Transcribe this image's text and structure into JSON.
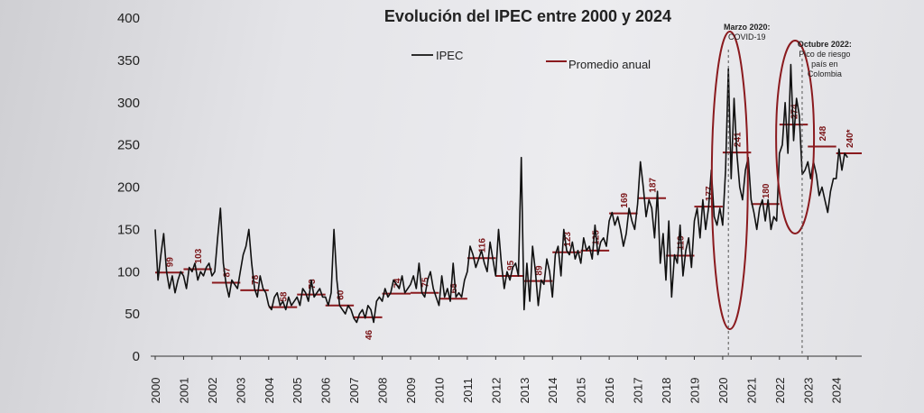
{
  "chart_data": {
    "type": "line",
    "title": "Evolución del IPEC entre 2000 y 2024",
    "xlabel": "",
    "ylabel": "",
    "ylim": [
      0,
      400
    ],
    "yticks": [
      "0",
      "50",
      "100",
      "150",
      "200",
      "250",
      "300",
      "350",
      "400"
    ],
    "xlim": [
      2000,
      2024.9
    ],
    "xticks": [
      "2000",
      "2001",
      "2002",
      "2003",
      "2004",
      "2005",
      "2006",
      "2007",
      "2008",
      "2009",
      "2010",
      "2011",
      "2012",
      "2013",
      "2014",
      "2015",
      "2016",
      "2017",
      "2018",
      "2019",
      "2020",
      "2021",
      "2022",
      "2023",
      "2024"
    ],
    "grid": false,
    "legend": {
      "placement": "top-center",
      "entries": [
        "IPEC",
        "Promedio anual"
      ]
    },
    "series": [
      {
        "name": "IPEC",
        "color": "#111111",
        "x": [
          2000.0,
          2000.1,
          2000.2,
          2000.3,
          2000.4,
          2000.5,
          2000.6,
          2000.7,
          2000.8,
          2000.9,
          2001.0,
          2001.1,
          2001.2,
          2001.3,
          2001.4,
          2001.5,
          2001.6,
          2001.7,
          2001.8,
          2001.9,
          2002.0,
          2002.1,
          2002.2,
          2002.3,
          2002.4,
          2002.5,
          2002.6,
          2002.7,
          2002.8,
          2002.9,
          2003.0,
          2003.1,
          2003.2,
          2003.3,
          2003.4,
          2003.5,
          2003.6,
          2003.7,
          2003.8,
          2003.9,
          2004.0,
          2004.1,
          2004.2,
          2004.3,
          2004.4,
          2004.5,
          2004.6,
          2004.7,
          2004.8,
          2004.9,
          2005.0,
          2005.1,
          2005.2,
          2005.3,
          2005.4,
          2005.5,
          2005.6,
          2005.7,
          2005.8,
          2005.9,
          2006.0,
          2006.1,
          2006.2,
          2006.3,
          2006.4,
          2006.5,
          2006.6,
          2006.7,
          2006.8,
          2006.9,
          2007.0,
          2007.1,
          2007.2,
          2007.3,
          2007.4,
          2007.5,
          2007.6,
          2007.7,
          2007.8,
          2007.9,
          2008.0,
          2008.1,
          2008.2,
          2008.3,
          2008.4,
          2008.5,
          2008.6,
          2008.7,
          2008.8,
          2008.9,
          2009.0,
          2009.1,
          2009.2,
          2009.3,
          2009.4,
          2009.5,
          2009.6,
          2009.7,
          2009.8,
          2009.9,
          2010.0,
          2010.1,
          2010.2,
          2010.3,
          2010.4,
          2010.5,
          2010.6,
          2010.7,
          2010.8,
          2010.9,
          2011.0,
          2011.1,
          2011.2,
          2011.3,
          2011.4,
          2011.5,
          2011.6,
          2011.7,
          2011.8,
          2011.9,
          2012.0,
          2012.1,
          2012.2,
          2012.3,
          2012.4,
          2012.5,
          2012.6,
          2012.7,
          2012.8,
          2012.9,
          2013.0,
          2013.1,
          2013.2,
          2013.3,
          2013.4,
          2013.5,
          2013.6,
          2013.7,
          2013.8,
          2013.9,
          2014.0,
          2014.1,
          2014.2,
          2014.3,
          2014.4,
          2014.5,
          2014.6,
          2014.7,
          2014.8,
          2014.9,
          2015.0,
          2015.1,
          2015.2,
          2015.3,
          2015.4,
          2015.5,
          2015.6,
          2015.7,
          2015.8,
          2015.9,
          2016.0,
          2016.1,
          2016.2,
          2016.3,
          2016.4,
          2016.5,
          2016.6,
          2016.7,
          2016.8,
          2016.9,
          2017.0,
          2017.1,
          2017.2,
          2017.3,
          2017.4,
          2017.5,
          2017.6,
          2017.7,
          2017.8,
          2017.9,
          2018.0,
          2018.1,
          2018.2,
          2018.3,
          2018.4,
          2018.5,
          2018.6,
          2018.7,
          2018.8,
          2018.9,
          2019.0,
          2019.1,
          2019.2,
          2019.3,
          2019.4,
          2019.5,
          2019.6,
          2019.7,
          2019.8,
          2019.9,
          2020.0,
          2020.1,
          2020.2,
          2020.3,
          2020.4,
          2020.5,
          2020.6,
          2020.7,
          2020.8,
          2020.9,
          2021.0,
          2021.1,
          2021.2,
          2021.3,
          2021.4,
          2021.5,
          2021.6,
          2021.7,
          2021.8,
          2021.9,
          2022.0,
          2022.1,
          2022.2,
          2022.3,
          2022.4,
          2022.5,
          2022.6,
          2022.7,
          2022.8,
          2022.9,
          2023.0,
          2023.1,
          2023.2,
          2023.3,
          2023.4,
          2023.5,
          2023.6,
          2023.7,
          2023.8,
          2023.9,
          2024.0,
          2024.1,
          2024.2,
          2024.3,
          2024.4
        ],
        "y": [
          150,
          90,
          120,
          145,
          100,
          80,
          95,
          75,
          90,
          100,
          95,
          80,
          105,
          100,
          110,
          90,
          100,
          95,
          105,
          110,
          95,
          100,
          140,
          175,
          110,
          85,
          70,
          90,
          85,
          80,
          100,
          120,
          130,
          150,
          110,
          80,
          70,
          95,
          80,
          75,
          60,
          55,
          70,
          75,
          60,
          65,
          55,
          70,
          60,
          65,
          70,
          60,
          80,
          75,
          65,
          90,
          70,
          75,
          80,
          70,
          70,
          60,
          75,
          150,
          90,
          60,
          55,
          50,
          60,
          55,
          45,
          40,
          50,
          55,
          45,
          60,
          55,
          40,
          65,
          70,
          65,
          80,
          70,
          75,
          90,
          85,
          80,
          95,
          75,
          80,
          85,
          95,
          80,
          110,
          75,
          70,
          90,
          100,
          80,
          70,
          60,
          95,
          70,
          80,
          65,
          110,
          70,
          75,
          70,
          90,
          100,
          130,
          120,
          105,
          115,
          125,
          110,
          100,
          135,
          115,
          95,
          150,
          110,
          80,
          100,
          90,
          105,
          110,
          95,
          235,
          55,
          110,
          65,
          130,
          100,
          60,
          90,
          85,
          115,
          100,
          70,
          120,
          130,
          95,
          150,
          125,
          120,
          135,
          115,
          125,
          110,
          140,
          125,
          130,
          115,
          155,
          120,
          135,
          140,
          130,
          160,
          170,
          155,
          165,
          150,
          130,
          145,
          175,
          160,
          150,
          180,
          230,
          200,
          165,
          185,
          175,
          140,
          195,
          110,
          145,
          90,
          160,
          70,
          120,
          110,
          155,
          95,
          125,
          140,
          105,
          160,
          175,
          140,
          185,
          150,
          175,
          220,
          165,
          155,
          175,
          155,
          220,
          340,
          210,
          305,
          240,
          200,
          185,
          220,
          235,
          185,
          170,
          150,
          175,
          185,
          160,
          185,
          150,
          165,
          160,
          240,
          250,
          300,
          240,
          345,
          255,
          305,
          285,
          215,
          220,
          230,
          210,
          230,
          215,
          190,
          200,
          185,
          170,
          195,
          210,
          210,
          245,
          220,
          240,
          235
        ]
      },
      {
        "name": "Promedio anual",
        "color": "#8a1a1e",
        "x": [
          2000,
          2001,
          2002,
          2003,
          2004,
          2005,
          2006,
          2007,
          2008,
          2009,
          2010,
          2011,
          2012,
          2013,
          2014,
          2015,
          2016,
          2017,
          2018,
          2019,
          2020,
          2021,
          2022,
          2023,
          2024
        ],
        "y": [
          99,
          103,
          87,
          78,
          58,
          73,
          60,
          46,
          74,
          75,
          68,
          116,
          95,
          89,
          123,
          125,
          169,
          187,
          119,
          177,
          241,
          180,
          274,
          248,
          240
        ],
        "labels": [
          "99",
          "103",
          "87",
          "78",
          "58",
          "73",
          "60",
          "46",
          "74",
          "75",
          "68",
          "116",
          "95",
          "89",
          "123",
          "125",
          "169",
          "187",
          "119",
          "177",
          "241",
          "180",
          "274",
          "248",
          "240*"
        ]
      }
    ],
    "annotations": [
      {
        "title": "Marzo 2020:",
        "text": [
          "COVID-19"
        ],
        "x": 2020.2
      },
      {
        "title": "Octubre 2022:",
        "text": [
          "Pico de riesgo",
          "país en",
          "Colombia"
        ],
        "x": 2022.8
      }
    ]
  }
}
